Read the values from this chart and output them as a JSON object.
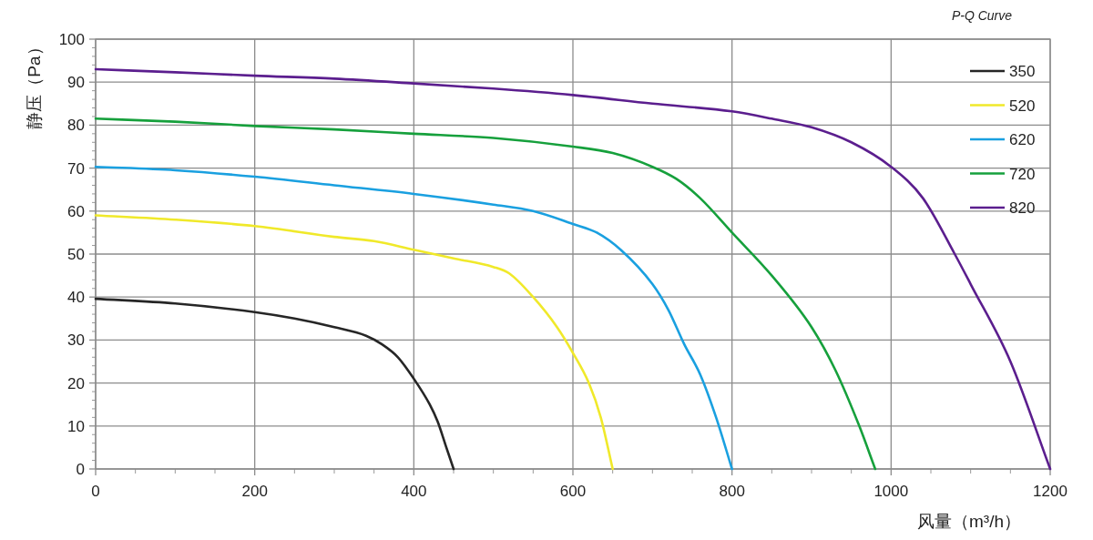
{
  "chart_data": {
    "type": "line",
    "title": "P-Q Curve",
    "xlabel": "风量（m³/h）",
    "ylabel": "静压（Pa）",
    "xlim": [
      0,
      1200
    ],
    "xticks": [
      0,
      200,
      400,
      600,
      800,
      1000,
      1200
    ],
    "ylim": [
      0,
      100
    ],
    "yticks": [
      0,
      10,
      20,
      30,
      40,
      50,
      60,
      70,
      80,
      90,
      100
    ],
    "grid": true,
    "legend": "top right",
    "marker": "none",
    "line_style": "solid",
    "series": [
      {
        "name": "350",
        "color": "#262626",
        "x": [
          0,
          100,
          200,
          250,
          300,
          340,
          360,
          380,
          400,
          420,
          430,
          440,
          450
        ],
        "values": [
          39.6,
          38.5,
          36.5,
          35,
          33,
          31,
          29,
          26,
          21,
          15,
          11,
          5.5,
          0
        ]
      },
      {
        "name": "520",
        "color": "#f0e92a",
        "x": [
          0,
          100,
          200,
          300,
          350,
          400,
          450,
          500,
          520,
          550,
          580,
          600,
          620,
          635,
          650
        ],
        "values": [
          59,
          58,
          56.5,
          54,
          53,
          51,
          49,
          47,
          45.5,
          40,
          33,
          27,
          20,
          12,
          0
        ]
      },
      {
        "name": "620",
        "color": "#1aa0e0",
        "x": [
          0,
          100,
          200,
          300,
          400,
          500,
          550,
          600,
          630,
          660,
          700,
          720,
          740,
          760,
          780,
          800
        ],
        "values": [
          70.3,
          69.5,
          68,
          66,
          64,
          61.5,
          60,
          57,
          55,
          51,
          43,
          37,
          29,
          22,
          12,
          0
        ]
      },
      {
        "name": "720",
        "color": "#16a03c",
        "x": [
          0,
          100,
          200,
          300,
          400,
          500,
          600,
          650,
          700,
          730,
          760,
          800,
          850,
          900,
          930,
          960,
          980
        ],
        "values": [
          81.5,
          80.8,
          79.8,
          79,
          78,
          77,
          75,
          73.5,
          70.3,
          67.5,
          63,
          55,
          45,
          33,
          23,
          10,
          0
        ]
      },
      {
        "name": "820",
        "color": "#5b1e8e",
        "x": [
          0,
          100,
          200,
          300,
          400,
          500,
          600,
          700,
          800,
          850,
          900,
          950,
          1000,
          1040,
          1080,
          1100,
          1150,
          1200
        ],
        "values": [
          93,
          92.3,
          91.5,
          90.8,
          89.7,
          88.5,
          87,
          85,
          83.2,
          81.5,
          79.5,
          76,
          70.3,
          63,
          50,
          43,
          25,
          0
        ]
      }
    ]
  }
}
